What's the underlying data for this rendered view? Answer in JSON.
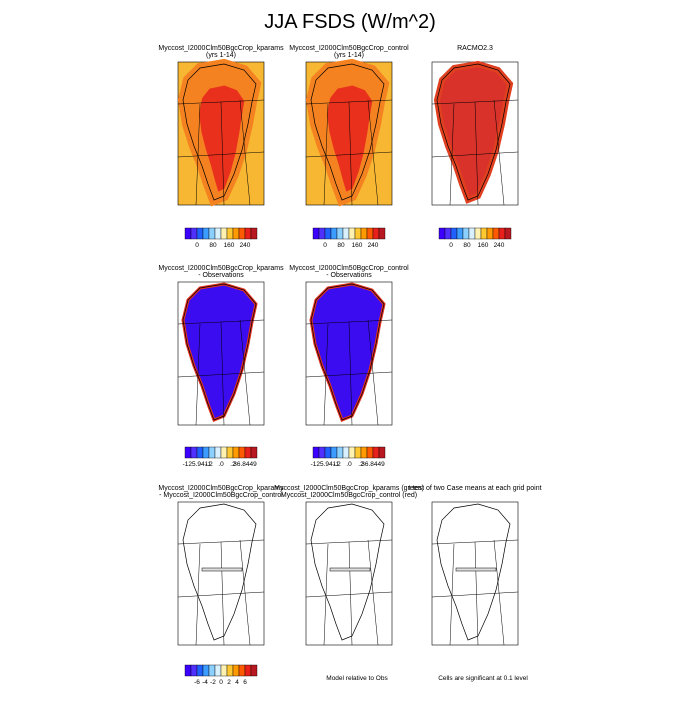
{
  "title": "JJA FSDS (W/m^2)",
  "panels": [
    {
      "title_lines": [
        "Myccost_I2000Clm50BgcCrop_kparams",
        "(yrs 1-14)"
      ],
      "colorbar_labels": [
        "0",
        "80",
        "160",
        "240"
      ]
    },
    {
      "title_lines": [
        "Myccost_I2000Clm50BgcCrop_control",
        "(yrs 1-14)"
      ],
      "colorbar_labels": [
        "0",
        "80",
        "160",
        "240"
      ]
    },
    {
      "title_lines": [
        "RACMO2.3"
      ],
      "colorbar_labels": [
        "0",
        "80",
        "160",
        "240"
      ]
    },
    {
      "title_lines": [
        "Myccost_I2000Clm50BgcCrop_kparams",
        "- Observations"
      ],
      "colorbar_labels": [
        "-125.9411",
        "-.2",
        ".0",
        ".2",
        "36.8449"
      ]
    },
    {
      "title_lines": [
        "Myccost_I2000Clm50BgcCrop_control",
        "- Observations"
      ],
      "colorbar_labels": [
        "-125.9411",
        "-.2",
        ".0",
        ".2",
        "36.8449"
      ]
    },
    {
      "title_lines": [
        "Myccost_I2000Clm50BgcCrop_kparams",
        "- Myccost_I2000Clm50BgcCrop_control"
      ],
      "colorbar_labels": [
        "-6",
        "-4",
        "-2",
        "0",
        "2",
        "4",
        "6"
      ]
    },
    {
      "title_lines": [
        "Myccost_I2000Clm50BgcCrop_kparams (green)",
        "Myccost_I2000Clm50BgcCrop_control (red)"
      ],
      "note": "Model relative to Obs"
    },
    {
      "title_lines": [
        "t-test of two Case means at each grid point"
      ],
      "note": "Cells are significant at 0.1 level"
    }
  ]
}
